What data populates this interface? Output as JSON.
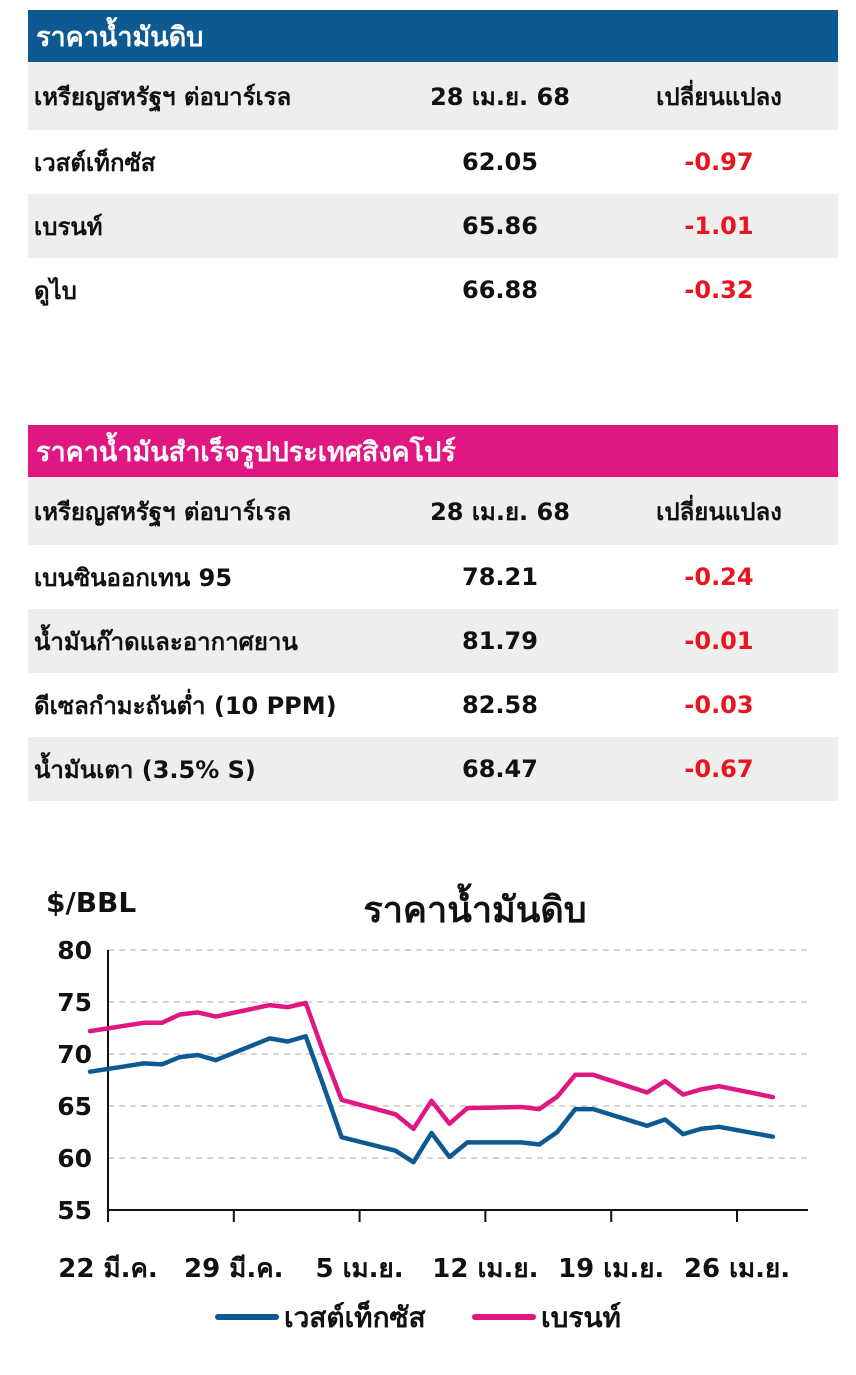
{
  "crude_table": {
    "title": "ราคาน้ำมันดิบ",
    "title_color": "#0d5a93",
    "headers": [
      "เหรียญสหรัฐฯ ต่อบาร์เรล",
      "28 เม.ย. 68",
      "เปลี่ยนแปลง"
    ],
    "rows": [
      {
        "name": "เวสต์เท็กซัส",
        "price": "62.05",
        "change": "-0.97"
      },
      {
        "name": "เบรนท์",
        "price": "65.86",
        "change": "-1.01"
      },
      {
        "name": "ดูไบ",
        "price": "66.88",
        "change": "-0.32"
      }
    ]
  },
  "refined_table": {
    "title": "ราคาน้ำมันสำเร็จรูปประเทศสิงคโปร์",
    "title_color": "#e01782",
    "headers": [
      "เหรียญสหรัฐฯ ต่อบาร์เรล",
      "28 เม.ย. 68",
      "เปลี่ยนแปลง"
    ],
    "rows": [
      {
        "name": "เบนซินออกเทน 95",
        "price": "78.21",
        "change": "-0.24"
      },
      {
        "name": "น้ำมันก๊าดและอากาศยาน",
        "price": "81.79",
        "change": "-0.01"
      },
      {
        "name": "ดีเซลกำมะถันต่ำ (10 PPM)",
        "price": "82.58",
        "change": "-0.03"
      },
      {
        "name": "น้ำมันเตา (3.5% S)",
        "price": "68.47",
        "change": "-0.67"
      }
    ]
  },
  "chart_data": {
    "type": "line",
    "title": "ราคาน้ำมันดิบ",
    "ylabel": "$/BBL",
    "xlabel": "",
    "ylim": [
      55,
      80
    ],
    "yticks": [
      80,
      75,
      70,
      65,
      60,
      55
    ],
    "grid": true,
    "legend_position": "bottom",
    "x": [
      "2025-03-21",
      "2025-03-24",
      "2025-03-25",
      "2025-03-26",
      "2025-03-27",
      "2025-03-28",
      "2025-03-31",
      "2025-04-01",
      "2025-04-02",
      "2025-04-03",
      "2025-04-04",
      "2025-04-07",
      "2025-04-08",
      "2025-04-09",
      "2025-04-10",
      "2025-04-11",
      "2025-04-14",
      "2025-04-15",
      "2025-04-16",
      "2025-04-17",
      "2025-04-18",
      "2025-04-21",
      "2025-04-22",
      "2025-04-23",
      "2025-04-24",
      "2025-04-25",
      "2025-04-28"
    ],
    "x_tick_labels": [
      "22 มี.ค.",
      "29 มี.ค.",
      "5 เม.ย.",
      "12 เม.ย.",
      "19 เม.ย.",
      "26 เม.ย."
    ],
    "x_tick_dates": [
      "2025-03-22",
      "2025-03-29",
      "2025-04-05",
      "2025-04-12",
      "2025-04-19",
      "2025-04-26"
    ],
    "series": [
      {
        "name": "เวสต์เท็กซัส",
        "color": "#0d5a93",
        "values": [
          68.3,
          69.1,
          69.0,
          69.7,
          69.9,
          69.4,
          71.5,
          71.2,
          71.7,
          66.9,
          62.0,
          60.7,
          59.6,
          62.4,
          60.1,
          61.5,
          61.5,
          61.3,
          62.5,
          64.7,
          64.7,
          63.1,
          63.7,
          62.3,
          62.8,
          63.0,
          62.05
        ]
      },
      {
        "name": "เบรนท์",
        "color": "#e01782",
        "values": [
          72.2,
          73.0,
          73.0,
          73.8,
          74.0,
          73.6,
          74.7,
          74.5,
          74.9,
          70.1,
          65.6,
          64.2,
          62.8,
          65.5,
          63.3,
          64.8,
          64.9,
          64.7,
          65.9,
          68.0,
          68.0,
          66.3,
          67.4,
          66.1,
          66.6,
          66.9,
          65.86
        ]
      }
    ]
  }
}
